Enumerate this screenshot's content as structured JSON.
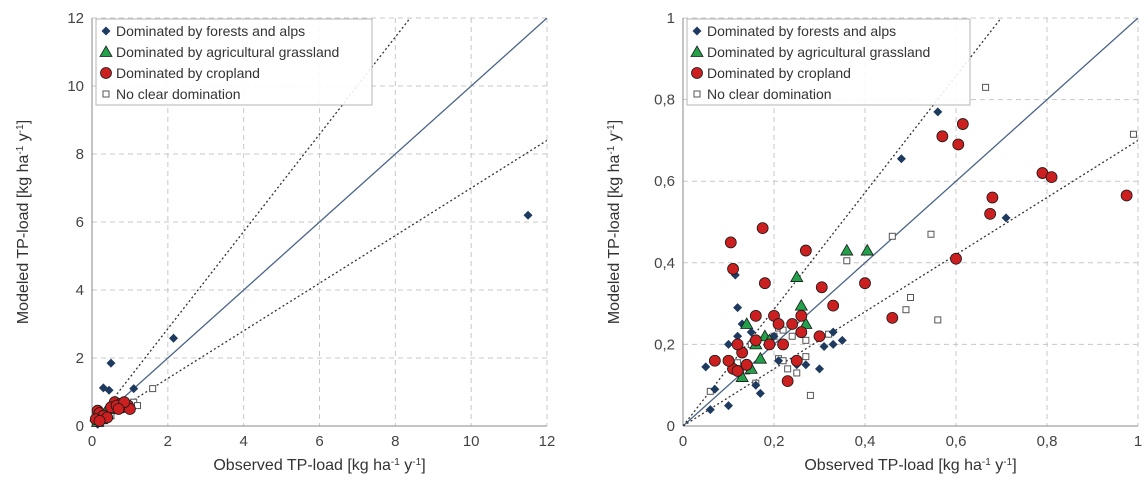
{
  "chart_data": [
    {
      "type": "scatter",
      "xlabel": "Observed TP-load [kg ha⁻¹ y⁻¹]",
      "ylabel": "Modeled TP-load [kg ha⁻¹ y⁻¹]",
      "xlim": [
        0,
        12
      ],
      "ylim": [
        0,
        12
      ],
      "x_ticks": [
        "0",
        "2",
        "4",
        "6",
        "8",
        "10",
        "12"
      ],
      "y_ticks": [
        "0",
        "2",
        "4",
        "6",
        "8",
        "10",
        "12"
      ],
      "grid": true,
      "legend_position": "top-left",
      "reference_lines": [
        {
          "style": "solid",
          "slope": 1.0
        },
        {
          "style": "dotted",
          "slope": 1.43
        },
        {
          "style": "dotted",
          "slope": 0.7
        }
      ],
      "series": [
        {
          "name": "Dominated by forests and alps",
          "marker": "diamond",
          "color": "#1f3a5f",
          "points": [
            [
              11.5,
              6.2
            ],
            [
              2.15,
              2.58
            ],
            [
              0.5,
              1.85
            ],
            [
              0.3,
              1.12
            ],
            [
              0.45,
              1.05
            ],
            [
              1.1,
              1.1
            ],
            [
              0.6,
              0.75
            ],
            [
              0.9,
              0.65
            ],
            [
              0.2,
              0.2
            ],
            [
              0.1,
              0.1
            ],
            [
              0.3,
              0.2
            ],
            [
              0.15,
              0.05
            ],
            [
              0.4,
              0.3
            ],
            [
              0.05,
              0.15
            ],
            [
              0.25,
              0.12
            ]
          ]
        },
        {
          "name": "Dominated by agricultural grassland",
          "marker": "triangle",
          "color": "#22a04a",
          "points": [
            [
              0.2,
              0.3
            ],
            [
              0.3,
              0.25
            ],
            [
              0.4,
              0.35
            ],
            [
              0.55,
              0.5
            ],
            [
              0.35,
              0.4
            ],
            [
              0.25,
              0.2
            ],
            [
              0.15,
              0.12
            ]
          ]
        },
        {
          "name": "Dominated by cropland",
          "marker": "circle",
          "color": "#cc1f1f",
          "points": [
            [
              0.15,
              0.45
            ],
            [
              0.2,
              0.38
            ],
            [
              0.6,
              0.7
            ],
            [
              0.75,
              0.65
            ],
            [
              0.8,
              0.55
            ],
            [
              0.95,
              0.6
            ],
            [
              1.0,
              0.5
            ],
            [
              0.3,
              0.3
            ],
            [
              0.5,
              0.55
            ],
            [
              0.65,
              0.6
            ],
            [
              0.85,
              0.7
            ],
            [
              0.1,
              0.2
            ],
            [
              0.4,
              0.25
            ],
            [
              0.2,
              0.15
            ],
            [
              0.7,
              0.5
            ]
          ]
        },
        {
          "name": "No clear domination",
          "marker": "square",
          "color": "#ffffff",
          "points": [
            [
              1.6,
              1.1
            ],
            [
              1.1,
              0.7
            ],
            [
              1.0,
              0.5
            ],
            [
              0.8,
              0.6
            ],
            [
              0.6,
              0.45
            ],
            [
              0.5,
              0.3
            ],
            [
              0.35,
              0.25
            ],
            [
              0.2,
              0.15
            ],
            [
              0.25,
              0.3
            ],
            [
              1.2,
              0.6
            ],
            [
              0.15,
              0.1
            ]
          ]
        }
      ]
    },
    {
      "type": "scatter",
      "xlabel": "Observed TP-load [kg ha⁻¹ y⁻¹]",
      "ylabel": "Modeled TP-load [kg ha⁻¹ y⁻¹]",
      "xlim": [
        0,
        1
      ],
      "ylim": [
        0,
        1
      ],
      "x_ticks": [
        "0",
        "0,2",
        "0,4",
        "0,6",
        "0,8",
        "1"
      ],
      "y_ticks": [
        "0",
        "0,2",
        "0,4",
        "0,6",
        "0,8",
        "1"
      ],
      "grid": true,
      "legend_position": "top-left",
      "reference_lines": [
        {
          "style": "solid",
          "slope": 1.0
        },
        {
          "style": "dotted",
          "slope": 1.43
        },
        {
          "style": "dotted",
          "slope": 0.7
        }
      ],
      "series": [
        {
          "name": "Dominated by forests and alps",
          "marker": "diamond",
          "color": "#1f3a5f",
          "points": [
            [
              0.56,
              0.77
            ],
            [
              0.48,
              0.655
            ],
            [
              0.71,
              0.51
            ],
            [
              0.115,
              0.37
            ],
            [
              0.12,
              0.29
            ],
            [
              0.05,
              0.145
            ],
            [
              0.06,
              0.04
            ],
            [
              0.07,
              0.09
            ],
            [
              0.1,
              0.05
            ],
            [
              0.1,
              0.2
            ],
            [
              0.12,
              0.22
            ],
            [
              0.13,
              0.25
            ],
            [
              0.15,
              0.23
            ],
            [
              0.16,
              0.1
            ],
            [
              0.17,
              0.08
            ],
            [
              0.2,
              0.22
            ],
            [
              0.21,
              0.16
            ],
            [
              0.25,
              0.15
            ],
            [
              0.27,
              0.15
            ],
            [
              0.3,
              0.14
            ],
            [
              0.31,
              0.195
            ],
            [
              0.33,
              0.2
            ],
            [
              0.33,
              0.23
            ],
            [
              0.35,
              0.21
            ]
          ]
        },
        {
          "name": "Dominated by agricultural grassland",
          "marker": "triangle",
          "color": "#22a04a",
          "points": [
            [
              0.36,
              0.43
            ],
            [
              0.405,
              0.43
            ],
            [
              0.25,
              0.365
            ],
            [
              0.26,
              0.295
            ],
            [
              0.27,
              0.25
            ],
            [
              0.14,
              0.25
            ],
            [
              0.15,
              0.14
            ],
            [
              0.13,
              0.12
            ],
            [
              0.16,
              0.2
            ],
            [
              0.17,
              0.165
            ],
            [
              0.18,
              0.22
            ],
            [
              0.19,
              0.21
            ]
          ]
        },
        {
          "name": "Dominated by cropland",
          "marker": "circle",
          "color": "#cc1f1f",
          "points": [
            [
              0.57,
              0.71
            ],
            [
              0.615,
              0.74
            ],
            [
              0.605,
              0.69
            ],
            [
              0.175,
              0.485
            ],
            [
              0.105,
              0.45
            ],
            [
              0.11,
              0.385
            ],
            [
              0.27,
              0.43
            ],
            [
              0.4,
              0.35
            ],
            [
              0.305,
              0.34
            ],
            [
              0.18,
              0.35
            ],
            [
              0.26,
              0.27
            ],
            [
              0.3,
              0.22
            ],
            [
              0.2,
              0.27
            ],
            [
              0.24,
              0.25
            ],
            [
              0.26,
              0.23
            ],
            [
              0.21,
              0.25
            ],
            [
              0.22,
              0.2
            ],
            [
              0.19,
              0.2
            ],
            [
              0.16,
              0.27
            ],
            [
              0.16,
              0.21
            ],
            [
              0.13,
              0.18
            ],
            [
              0.12,
              0.2
            ],
            [
              0.11,
              0.14
            ],
            [
              0.1,
              0.16
            ],
            [
              0.07,
              0.16
            ],
            [
              0.23,
              0.11
            ],
            [
              0.25,
              0.16
            ],
            [
              0.46,
              0.265
            ],
            [
              0.33,
              0.295
            ],
            [
              0.6,
              0.41
            ],
            [
              0.68,
              0.56
            ],
            [
              0.675,
              0.52
            ],
            [
              0.79,
              0.62
            ],
            [
              0.81,
              0.61
            ],
            [
              0.975,
              0.565
            ],
            [
              0.12,
              0.135
            ],
            [
              0.14,
              0.15
            ]
          ]
        },
        {
          "name": "No clear domination",
          "marker": "square",
          "color": "#ffffff",
          "points": [
            [
              0.665,
              0.83
            ],
            [
              0.99,
              0.715
            ],
            [
              0.46,
              0.465
            ],
            [
              0.545,
              0.47
            ],
            [
              0.36,
              0.405
            ],
            [
              0.5,
              0.315
            ],
            [
              0.49,
              0.285
            ],
            [
              0.56,
              0.26
            ],
            [
              0.32,
              0.225
            ],
            [
              0.2,
              0.22
            ],
            [
              0.21,
              0.24
            ],
            [
              0.22,
              0.235
            ],
            [
              0.24,
              0.22
            ],
            [
              0.27,
              0.21
            ],
            [
              0.15,
              0.2
            ],
            [
              0.21,
              0.165
            ],
            [
              0.22,
              0.16
            ],
            [
              0.27,
              0.17
            ],
            [
              0.16,
              0.105
            ],
            [
              0.28,
              0.075
            ],
            [
              0.06,
              0.085
            ],
            [
              0.12,
              0.155
            ],
            [
              0.14,
              0.135
            ],
            [
              0.23,
              0.14
            ],
            [
              0.25,
              0.13
            ]
          ]
        }
      ]
    }
  ]
}
